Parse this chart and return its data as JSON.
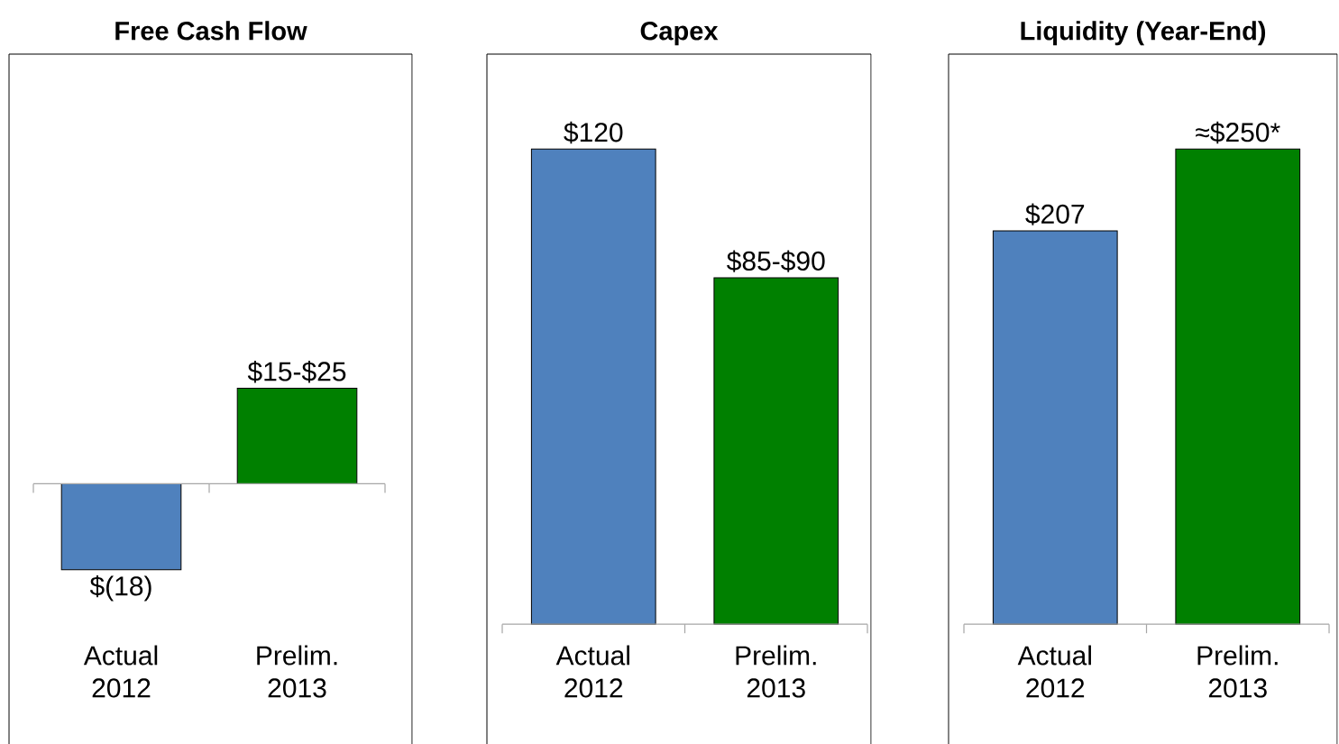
{
  "chart_data": [
    {
      "type": "bar",
      "title": "Free Cash Flow",
      "categories": [
        "Actual 2012",
        "Prelim. 2013"
      ],
      "values": [
        -18,
        20
      ],
      "colors": [
        "#4f81bd",
        "#008000"
      ],
      "value_labels": [
        "$(18)",
        "$15-$25"
      ]
    },
    {
      "type": "bar",
      "title": "Capex",
      "categories": [
        "Actual 2012",
        "Prelim. 2013"
      ],
      "values": [
        120,
        87.5
      ],
      "colors": [
        "#4f81bd",
        "#008000"
      ],
      "value_labels": [
        "$120",
        "$85-$90"
      ]
    },
    {
      "type": "bar",
      "title": "Liquidity (Year-End)",
      "categories": [
        "Actual 2012",
        "Prelim. 2013"
      ],
      "values": [
        207,
        250
      ],
      "colors": [
        "#4f81bd",
        "#008000"
      ],
      "value_labels": [
        "$207",
        "≈$250*"
      ]
    }
  ]
}
